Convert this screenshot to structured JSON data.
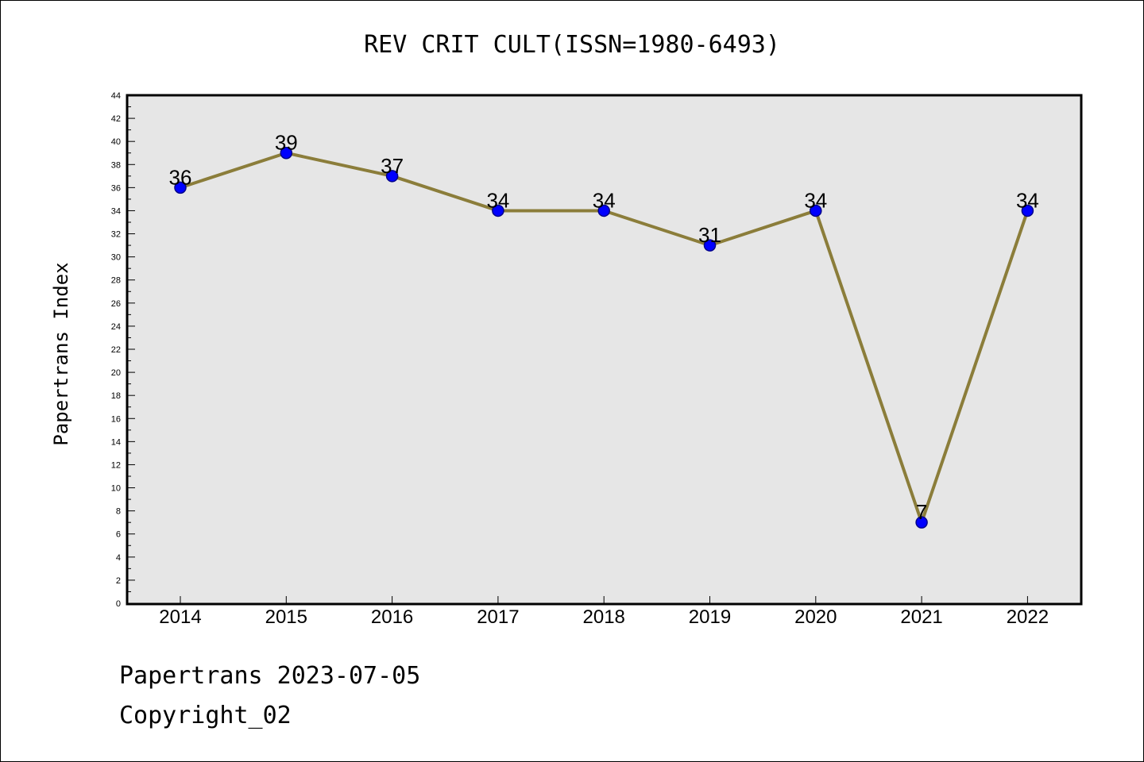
{
  "chart_data": {
    "type": "line",
    "title": "REV CRIT CULT(ISSN=1980-6493)",
    "ylabel": "Papertrans Index",
    "xlabel": "",
    "categories": [
      "2014",
      "2015",
      "2016",
      "2017",
      "2018",
      "2019",
      "2020",
      "2021",
      "2022"
    ],
    "series": [
      {
        "values": [
          36,
          39,
          37,
          34,
          34,
          31,
          34,
          7,
          34
        ]
      }
    ],
    "ylim": [
      0,
      44
    ],
    "ytick_step": 2,
    "grid": false,
    "legend": "none",
    "colors": {
      "line": "#8b7d3a",
      "marker_fill": "#0000ff",
      "marker_edge": "#00008b",
      "plot_background": "#e6e6e6"
    }
  },
  "footer": {
    "line1": "Papertrans 2023-07-05",
    "line2": "Copyright_02"
  }
}
